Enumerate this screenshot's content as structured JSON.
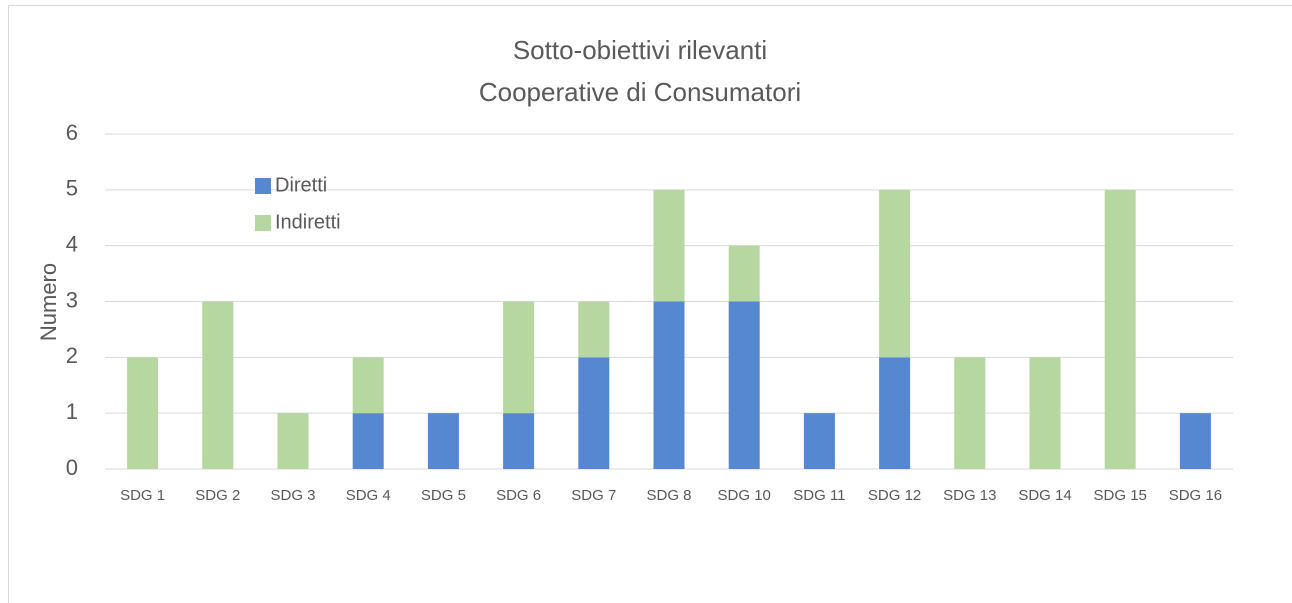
{
  "chart_data": {
    "type": "stacked_bar",
    "title": [
      "Sotto-obiettivi rilevanti",
      "Cooperative di Consumatori"
    ],
    "ylabel": "Numero",
    "categories": [
      "SDG 1",
      "SDG 2",
      "SDG 3",
      "SDG 4",
      "SDG 5",
      "SDG 6",
      "SDG 7",
      "SDG 8",
      "SDG 10",
      "SDG 11",
      "SDG 12",
      "SDG 13",
      "SDG 14",
      "SDG 15",
      "SDG 16"
    ],
    "series": [
      {
        "name": "Diretti",
        "color": "#5687d1",
        "values": [
          0,
          0,
          0,
          1,
          1,
          1,
          2,
          3,
          3,
          1,
          2,
          0,
          0,
          0,
          1
        ]
      },
      {
        "name": "Indiretti",
        "color": "#b6d7a0",
        "values": [
          2,
          3,
          1,
          1,
          0,
          2,
          1,
          2,
          1,
          0,
          3,
          2,
          2,
          5,
          0
        ]
      }
    ],
    "ylim": [
      0,
      6
    ],
    "yticks": [
      0,
      1,
      2,
      3,
      4,
      5,
      6
    ],
    "grid": true,
    "legend": "upper left"
  }
}
